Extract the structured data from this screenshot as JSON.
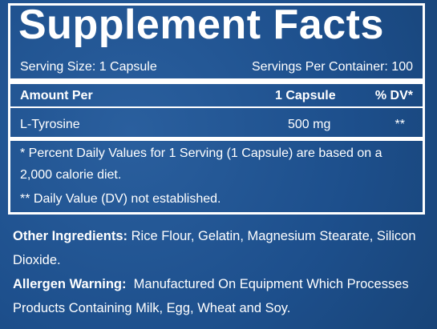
{
  "header": {
    "title": "Supplement Facts",
    "serving_size": "Serving Size: 1 Capsule",
    "servings_per_container": "Servings Per Container: 100"
  },
  "table": {
    "columns": [
      "Amount Per",
      "1 Capsule",
      "% DV*"
    ],
    "rows": [
      [
        "L-Tyrosine",
        "500 mg",
        "**"
      ]
    ]
  },
  "footnotes": [
    "* Percent Daily Values for 1 Serving (1 Capsule) are based on a 2,000 calorie diet.",
    "** Daily Value (DV) not established."
  ],
  "other_ingredients": {
    "label": "Other Ingredients:",
    "text": "Rice Flour, Gelatin, Magnesium Stearate, Silicon Dioxide."
  },
  "allergen_warning": {
    "label": "Allergen Warning:",
    "text": "Manufactured On Equipment Which Processes Products Containing Milk, Egg, Wheat and Soy."
  }
}
